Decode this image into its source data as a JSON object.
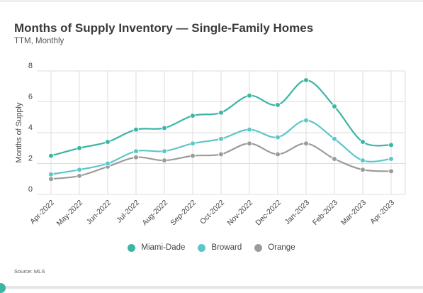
{
  "header": {
    "title": "Months of Supply Inventory — Single-Family Homes",
    "subtitle": "TTM, Monthly"
  },
  "footer": {
    "source": "Source: MLS"
  },
  "colors": {
    "miami_dade": "#3bb5a4",
    "broward": "#5cc6c8",
    "orange": "#9b9b9b",
    "grid": "#dddddd"
  },
  "chart_data": {
    "type": "line",
    "title": "Months of Supply Inventory — Single-Family Homes",
    "subtitle": "TTM, Monthly",
    "xlabel": "",
    "ylabel": "Months of Supply",
    "ylim": [
      0,
      8
    ],
    "yticks": [
      0,
      2,
      4,
      6,
      8
    ],
    "grid": true,
    "legend_position": "bottom",
    "categories": [
      "Apr-2022",
      "May-2022",
      "Jun-2022",
      "Jul-2022",
      "Aug-2022",
      "Sep-2022",
      "Oct-2022",
      "Nov-2022",
      "Dec-2022",
      "Jan-2023",
      "Feb-2023",
      "Mar-2023",
      "Apr-2023"
    ],
    "series": [
      {
        "name": "Miami-Dade",
        "color": "#3bb5a4",
        "values": [
          2.5,
          3.0,
          3.4,
          4.2,
          4.3,
          5.1,
          5.3,
          6.4,
          5.8,
          7.4,
          5.7,
          3.4,
          3.2
        ]
      },
      {
        "name": "Broward",
        "color": "#5cc6c8",
        "values": [
          1.3,
          1.6,
          2.0,
          2.8,
          2.8,
          3.3,
          3.6,
          4.2,
          3.7,
          4.8,
          3.6,
          2.2,
          2.3
        ]
      },
      {
        "name": "Orange",
        "color": "#9b9b9b",
        "values": [
          1.0,
          1.2,
          1.8,
          2.4,
          2.2,
          2.5,
          2.6,
          3.3,
          2.6,
          3.3,
          2.3,
          1.6,
          1.5
        ]
      }
    ]
  }
}
